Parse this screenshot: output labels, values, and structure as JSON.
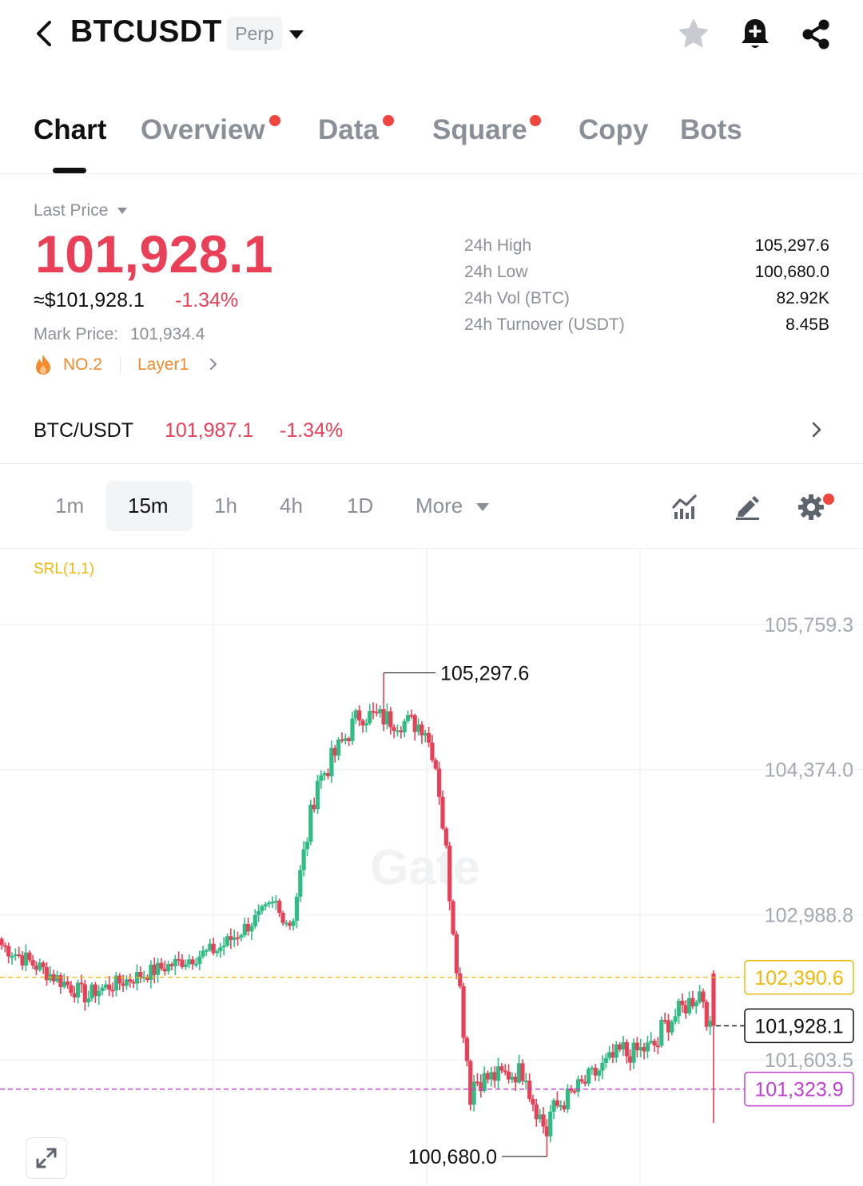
{
  "header": {
    "symbol": "BTCUSDT",
    "contract_type": "Perp",
    "icons": [
      "back-icon",
      "star-icon",
      "bell-plus-icon",
      "share-icon"
    ]
  },
  "tabs": [
    {
      "label": "Chart",
      "active": true,
      "dot": false
    },
    {
      "label": "Overview",
      "active": false,
      "dot": true
    },
    {
      "label": "Data",
      "active": false,
      "dot": true
    },
    {
      "label": "Square",
      "active": false,
      "dot": true
    },
    {
      "label": "Copy",
      "active": false,
      "dot": false
    },
    {
      "label": "Bots",
      "active": false,
      "dot": false
    }
  ],
  "price": {
    "label": "Last Price",
    "last": "101,928.1",
    "usd": "≈$101,928.1",
    "change": "-1.34%",
    "mark_label": "Mark Price:",
    "mark_value": "101,934.4",
    "rank": "NO.2",
    "tag": "Layer1"
  },
  "stats": [
    {
      "label": "24h High",
      "value": "105,297.6"
    },
    {
      "label": "24h Low",
      "value": "100,680.0"
    },
    {
      "label": "24h Vol (BTC)",
      "value": "82.92K"
    },
    {
      "label": "24h Turnover (USDT)",
      "value": "8.45B"
    }
  ],
  "spot": {
    "pair": "BTC/USDT",
    "price": "101,987.1",
    "change": "-1.34%"
  },
  "intervals": {
    "items": [
      "1m",
      "15m",
      "1h",
      "4h",
      "1D"
    ],
    "active": "15m",
    "more_label": "More"
  },
  "chart": {
    "indicator": "SRL(1,1)",
    "watermark": "Gate",
    "axis_labels": [
      "105,759.3",
      "104,374.0",
      "102,988.8",
      "101,603.5"
    ],
    "high_marker": "105,297.6",
    "low_marker": "100,680.0",
    "srl_upper": "102,390.6",
    "last_tag": "101,928.1",
    "srl_lower": "101,323.9",
    "colors": {
      "up": "#2ebd85",
      "down": "#ea3f56",
      "srl_upper": "#f0b90b",
      "srl_lower": "#c13fd1"
    }
  },
  "chart_data": {
    "type": "candlestick",
    "interval": "15m",
    "y_ticks": [
      105759.3,
      104374.0,
      102988.8,
      101603.5
    ],
    "ylim": [
      100500,
      106000
    ],
    "grid": true,
    "high": 105297.6,
    "low": 100680.0,
    "last": 101928.1,
    "srl_upper": 102390.6,
    "srl_lower": 101323.9,
    "ohlc_segments": [
      {
        "from": 102700,
        "to": 102200,
        "n": 26,
        "noise": 90
      },
      {
        "from": 102250,
        "to": 102650,
        "n": 36,
        "noise": 80
      },
      {
        "from": 102650,
        "to": 103100,
        "n": 18,
        "noise": 80
      },
      {
        "from": 103000,
        "to": 102900,
        "n": 4,
        "noise": 60
      },
      {
        "from": 103000,
        "to": 104300,
        "n": 8,
        "noise": 120
      },
      {
        "from": 104300,
        "to": 104900,
        "n": 12,
        "noise": 120
      },
      {
        "from": 104900,
        "to": 104800,
        "n": 18,
        "noise": 110
      },
      {
        "from": 104750,
        "to": 104400,
        "n": 4,
        "noise": 60
      },
      {
        "from": 104200,
        "to": 101300,
        "n": 10,
        "noise": 160
      },
      {
        "from": 101400,
        "to": 101500,
        "n": 16,
        "noise": 110
      },
      {
        "from": 101300,
        "to": 100900,
        "n": 6,
        "noise": 110
      },
      {
        "from": 101100,
        "to": 101700,
        "n": 22,
        "noise": 110
      },
      {
        "from": 101650,
        "to": 101750,
        "n": 10,
        "noise": 100
      },
      {
        "from": 101900,
        "to": 102250,
        "n": 12,
        "noise": 110
      },
      {
        "from": 102200,
        "to": 101700,
        "n": 4,
        "noise": 120
      }
    ]
  }
}
